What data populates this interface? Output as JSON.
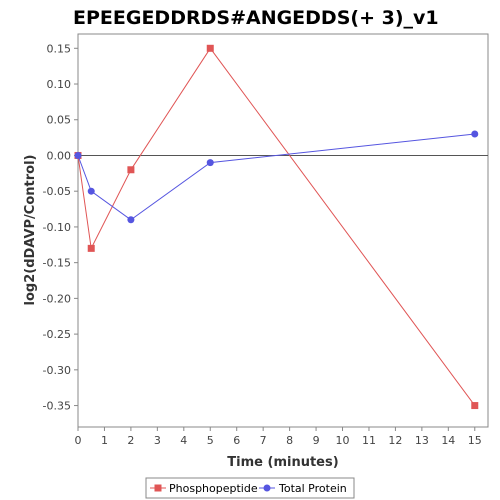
{
  "chart_data": {
    "type": "line",
    "title": "EPEEGEDDRDS#ANGEDDS(+ 3)_v1",
    "xlabel": "Time (minutes)",
    "ylabel": "log2(dDAVP/Control)",
    "xlim": [
      0,
      15.5
    ],
    "ylim": [
      -0.38,
      0.17
    ],
    "xticks": [
      0,
      1,
      2,
      3,
      4,
      5,
      6,
      7,
      8,
      9,
      10,
      11,
      12,
      13,
      14,
      15
    ],
    "yticks": [
      0.15,
      0.1,
      0.05,
      0.0,
      -0.05,
      -0.1,
      -0.15,
      -0.2,
      -0.25,
      -0.3,
      -0.35
    ],
    "ytick_labels": [
      "0.15",
      "0.10",
      "0.05",
      "0.00",
      "-0.05",
      "-0.10",
      "-0.15",
      "-0.20",
      "-0.25",
      "-0.30",
      "-0.35"
    ],
    "zero_line": true,
    "grid": false,
    "legend_position": "bottom-center",
    "series": [
      {
        "name": "Phosphopeptide",
        "color": "#e05555",
        "marker": "square",
        "x": [
          0,
          0.5,
          2,
          5,
          15
        ],
        "y": [
          0.0,
          -0.13,
          -0.02,
          0.15,
          -0.35
        ]
      },
      {
        "name": "Total Protein",
        "color": "#5555e0",
        "marker": "circle",
        "x": [
          0,
          0.5,
          2,
          5,
          15
        ],
        "y": [
          0.0,
          -0.05,
          -0.09,
          -0.01,
          0.03
        ]
      }
    ]
  }
}
